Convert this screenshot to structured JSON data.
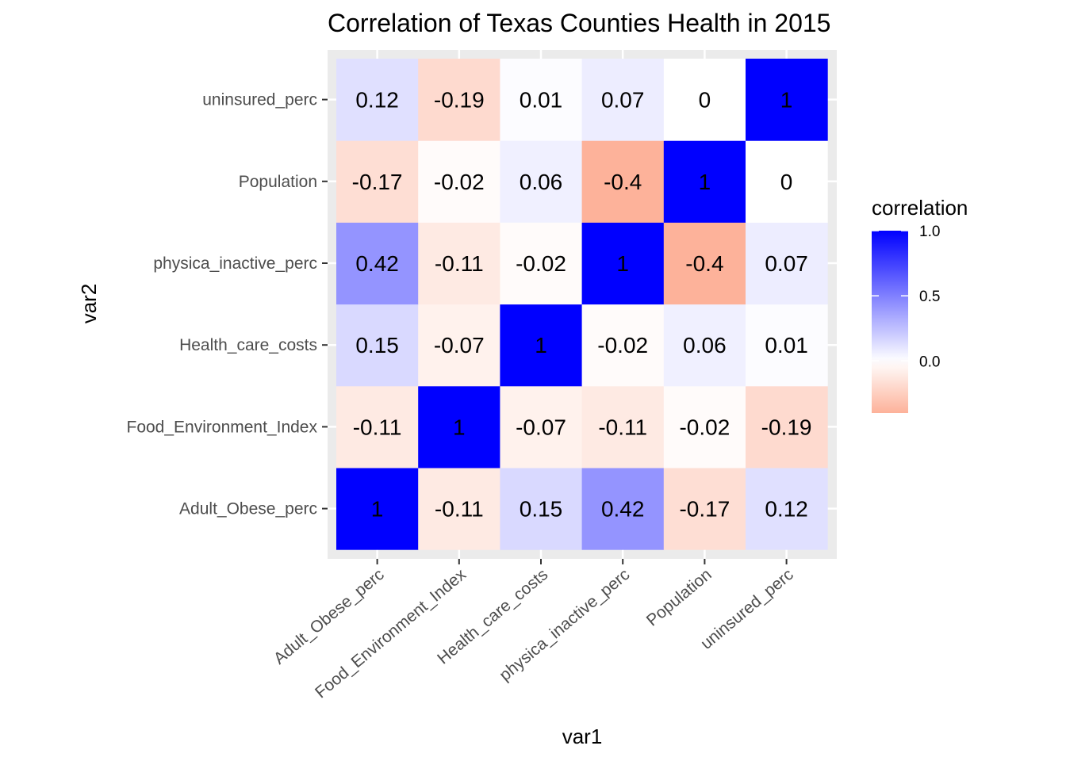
{
  "chart_data": {
    "type": "heatmap",
    "title": "Correlation of Texas Counties Health in 2015",
    "xlabel": "var1",
    "ylabel": "var2",
    "x_categories": [
      "Adult_Obese_perc",
      "Food_Environment_Index",
      "Health_care_costs",
      "physica_inactive_perc",
      "Population",
      "uninsured_perc"
    ],
    "y_categories": [
      "Adult_Obese_perc",
      "Food_Environment_Index",
      "Health_care_costs",
      "physica_inactive_perc",
      "Population",
      "uninsured_perc"
    ],
    "values": [
      [
        1,
        -0.11,
        0.15,
        0.42,
        -0.17,
        0.12
      ],
      [
        -0.11,
        1,
        -0.07,
        -0.11,
        -0.02,
        -0.19
      ],
      [
        0.15,
        -0.07,
        1,
        -0.02,
        0.06,
        0.01
      ],
      [
        0.42,
        -0.11,
        -0.02,
        1,
        -0.4,
        0.07
      ],
      [
        -0.17,
        -0.02,
        0.06,
        -0.4,
        1,
        0
      ],
      [
        0.12,
        -0.19,
        0.01,
        0.07,
        0,
        1
      ]
    ],
    "value_labels": [
      [
        "1",
        "-0.11",
        "0.15",
        "0.42",
        "-0.17",
        "0.12"
      ],
      [
        "-0.11",
        "1",
        "-0.07",
        "-0.11",
        "-0.02",
        "-0.19"
      ],
      [
        "0.15",
        "-0.07",
        "1",
        "-0.02",
        "0.06",
        "0.01"
      ],
      [
        "0.42",
        "-0.11",
        "-0.02",
        "1",
        "-0.4",
        "0.07"
      ],
      [
        "-0.17",
        "-0.02",
        "0.06",
        "-0.4",
        "1",
        "0"
      ],
      [
        "0.12",
        "-0.19",
        "0.01",
        "0.07",
        "0",
        "1"
      ]
    ],
    "color_scale": {
      "low": "#FDB29A",
      "mid": "#FFFFFF",
      "high": "#0000FF",
      "min": -0.4,
      "mid_value": 0,
      "max": 1.0
    },
    "legend": {
      "title": "correlation",
      "placement": "right",
      "ticks": [
        {
          "value": 1.0,
          "label": "1.0"
        },
        {
          "value": 0.5,
          "label": "0.5"
        },
        {
          "value": 0.0,
          "label": "0.0"
        }
      ]
    },
    "panel_background": "#EBEBEB",
    "grid": true
  }
}
